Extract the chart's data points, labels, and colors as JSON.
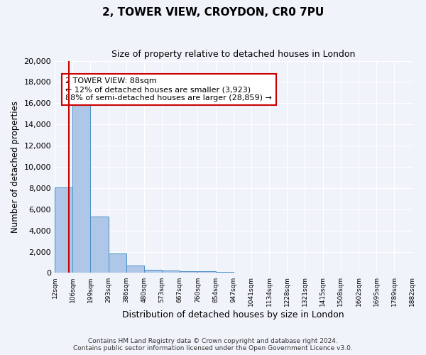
{
  "title": "2, TOWER VIEW, CROYDON, CR0 7PU",
  "subtitle": "Size of property relative to detached houses in London",
  "xlabel": "Distribution of detached houses by size in London",
  "ylabel": "Number of detached properties",
  "bar_values": [
    8050,
    16500,
    5300,
    1850,
    700,
    310,
    220,
    175,
    150,
    95,
    30,
    15,
    5,
    3,
    2,
    1,
    1,
    0,
    0,
    0
  ],
  "bar_color": "#aec6e8",
  "bar_edge_color": "#4a90c4",
  "x_labels": [
    "12sqm",
    "106sqm",
    "199sqm",
    "293sqm",
    "386sqm",
    "480sqm",
    "573sqm",
    "667sqm",
    "760sqm",
    "854sqm",
    "947sqm",
    "1041sqm",
    "1134sqm",
    "1228sqm",
    "1321sqm",
    "1415sqm",
    "1508sqm",
    "1602sqm",
    "1695sqm",
    "1789sqm",
    "1882sqm"
  ],
  "ylim": [
    0,
    20000
  ],
  "yticks": [
    0,
    2000,
    4000,
    6000,
    8000,
    10000,
    12000,
    14000,
    16000,
    18000,
    20000
  ],
  "property_line_x": 0.88,
  "property_line_color": "#cc0000",
  "annotation_text": "2 TOWER VIEW: 88sqm\n← 12% of detached houses are smaller (3,923)\n88% of semi-detached houses are larger (28,859) →",
  "annotation_box_color": "#ffffff",
  "annotation_box_edge_color": "#cc0000",
  "footnote": "Contains HM Land Registry data © Crown copyright and database right 2024.\nContains public sector information licensed under the Open Government Licence v3.0.",
  "background_color": "#f0f4fa",
  "grid_color": "#ffffff",
  "fig_width": 6.0,
  "fig_height": 5.0,
  "dpi": 100
}
